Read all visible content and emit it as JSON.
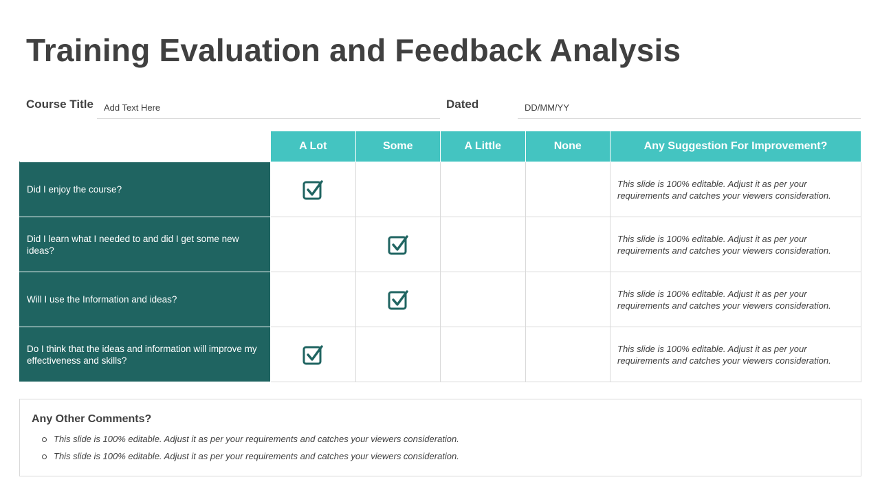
{
  "title": "Training Evaluation and Feedback Analysis",
  "fields": {
    "course_title_label": "Course Title",
    "course_title_placeholder": "Add Text Here",
    "dated_label": "Dated",
    "dated_placeholder": "DD/MM/YY"
  },
  "table": {
    "columns": [
      "A Lot",
      "Some",
      "A Little",
      "None",
      "Any Suggestion For Improvement?"
    ],
    "rows": [
      {
        "question": "Did I enjoy the course?",
        "selected": "A Lot",
        "suggestion": "This slide is 100%  editable. Adjust it as per your requirements and catches your viewers consideration."
      },
      {
        "question": "Did I learn what I needed to and did I get some new ideas?",
        "selected": "Some",
        "suggestion": "This slide is 100%  editable. Adjust it as per your requirements and catches your viewers consideration."
      },
      {
        "question": "Will I use the Information and ideas?",
        "selected": "Some",
        "suggestion": "This slide is 100%  editable. Adjust it as per your requirements and catches your viewers consideration."
      },
      {
        "question": "Do I think that the ideas and information will improve my effectiveness and skills?",
        "selected": "A Lot",
        "suggestion": "This slide is 100%  editable. Adjust it as per your requirements and catches your viewers consideration."
      }
    ]
  },
  "comments": {
    "title": "Any Other Comments?",
    "items": [
      "This slide is 100%  editable. Adjust it as per your requirements and catches your viewers consideration.",
      "This slide is 100%  editable. Adjust it as per your requirements and catches your viewers consideration."
    ]
  },
  "colors": {
    "header_teal": "#44c4c1",
    "question_dark_teal": "#1f6461",
    "checkbox": "#1f6461",
    "text_gray": "#404040",
    "border_gray": "#d9d9d9"
  },
  "icons": {
    "check": "checkbox-checked-icon",
    "bullet": "hollow-circle-bullet"
  }
}
